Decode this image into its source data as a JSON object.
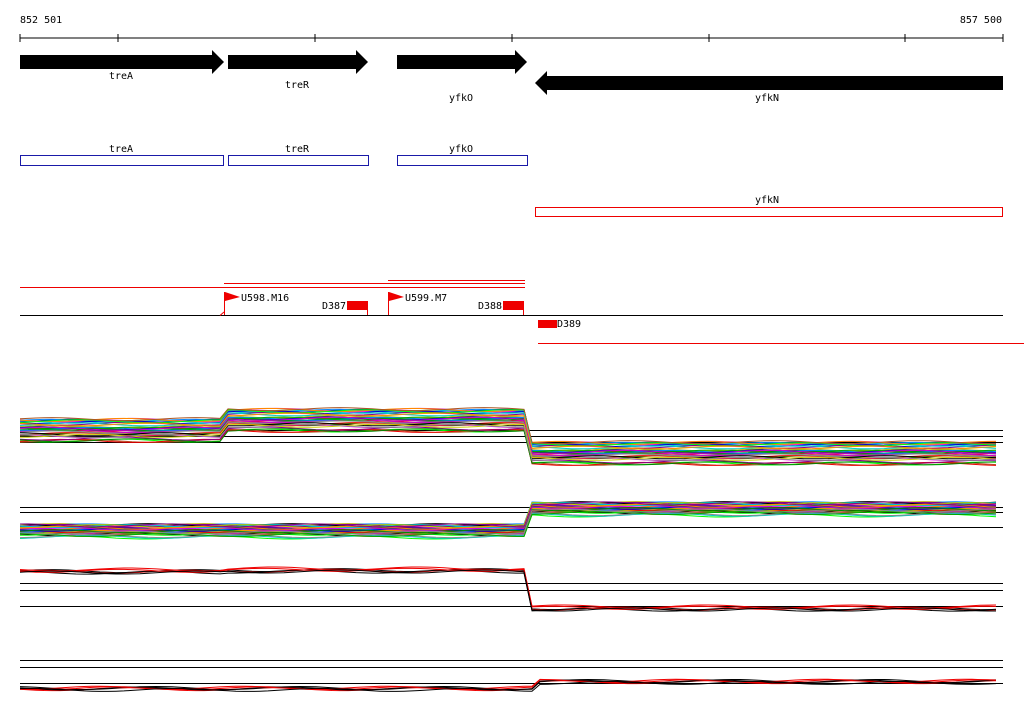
{
  "ruler": {
    "start": "852 501",
    "end": "857 500"
  },
  "genes": [
    {
      "label": "treA"
    },
    {
      "label": "treR"
    },
    {
      "label": "yfkO"
    },
    {
      "label": "yfkN"
    }
  ],
  "operons": [
    {
      "label": "treA"
    },
    {
      "label": "treR"
    },
    {
      "label": "yfkO"
    },
    {
      "label": "yfkN"
    }
  ],
  "promoters": [
    {
      "label": "U598.M16"
    },
    {
      "label": "U599.M7"
    }
  ],
  "terminators": [
    {
      "label": "D387"
    },
    {
      "label": "D388"
    },
    {
      "label": "D389"
    }
  ]
}
